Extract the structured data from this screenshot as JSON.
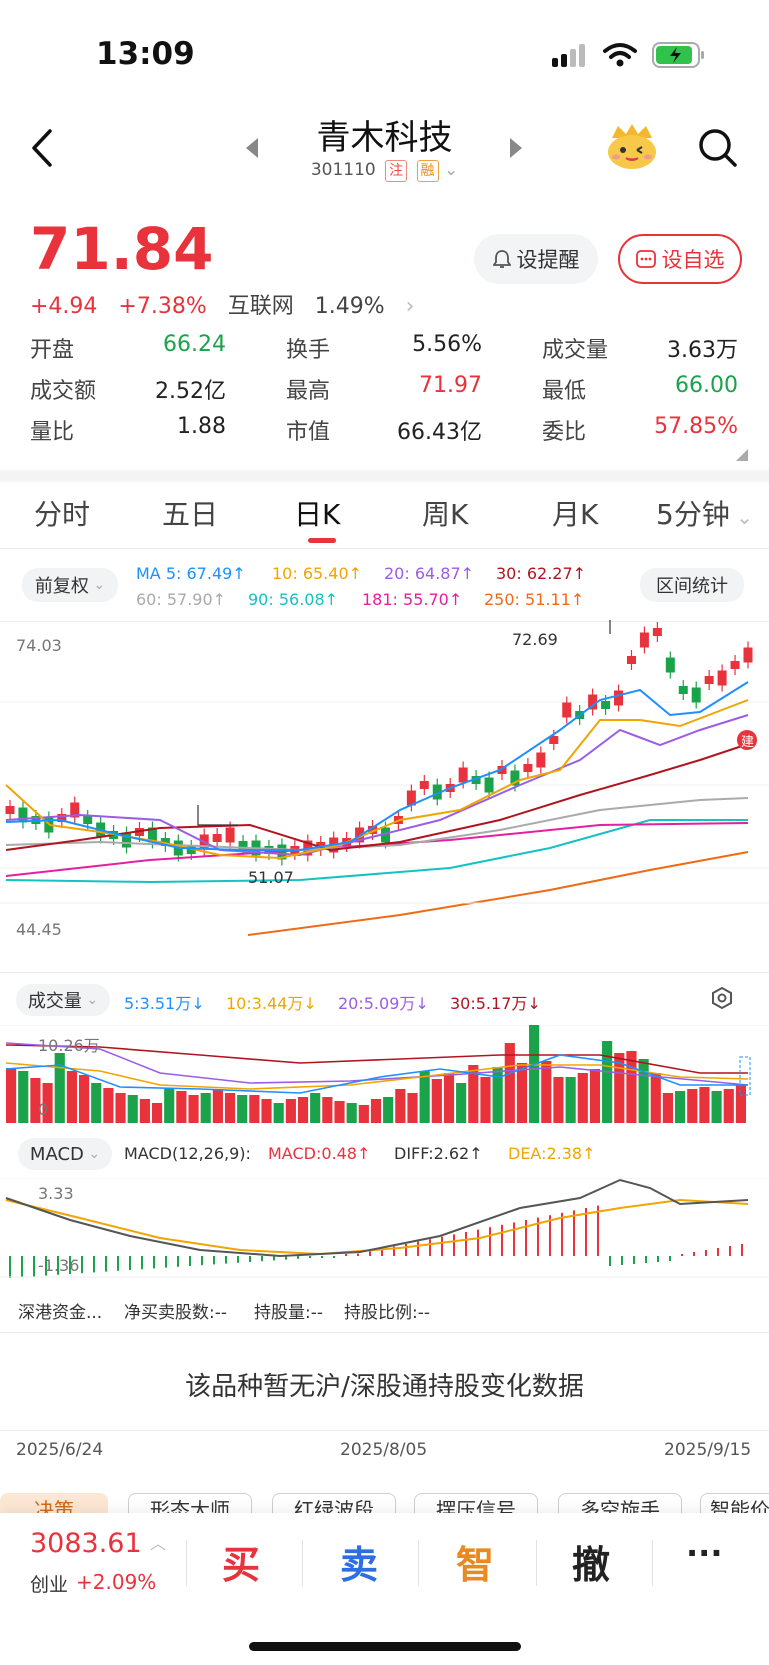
{
  "status": {
    "time": "13:09"
  },
  "header": {
    "title": "青木科技",
    "code": "301110",
    "tag1": "注",
    "tag2": "融"
  },
  "quote": {
    "price": "71.84",
    "change": "+4.94",
    "change_pct": "+7.38%",
    "sector": "互联网",
    "sector_pct": "1.49%",
    "btn_alert": "设提醒",
    "btn_watch": "设自选"
  },
  "stats": [
    {
      "label": "开盘",
      "value": "66.24",
      "color": "green"
    },
    {
      "label": "换手",
      "value": "5.56%",
      "color": "black"
    },
    {
      "label": "成交量",
      "value": "3.63万",
      "color": "black"
    },
    {
      "label": "成交额",
      "value": "2.52亿",
      "color": "black"
    },
    {
      "label": "最高",
      "value": "71.97",
      "color": "red"
    },
    {
      "label": "最低",
      "value": "66.00",
      "color": "green"
    },
    {
      "label": "量比",
      "value": "1.88",
      "color": "black"
    },
    {
      "label": "市值",
      "value": "66.43亿",
      "color": "black"
    },
    {
      "label": "委比",
      "value": "57.85%",
      "color": "red"
    }
  ],
  "tabs": [
    "分时",
    "五日",
    "日K",
    "周K",
    "月K",
    "5分钟"
  ],
  "kline": {
    "adjust": "前复权",
    "range_stats": "区间统计",
    "ma_row1": [
      "MA 5: 67.49↑",
      "10: 65.40↑",
      "20: 64.87↑",
      "30: 62.27↑"
    ],
    "ma_row2": [
      "60: 57.90↑",
      "90: 56.08↑",
      "181: 55.70↑",
      "250: 51.11↑"
    ],
    "ma_colors": [
      "#1e90ff",
      "#f0a500",
      "#9b5de5",
      "#b0141e",
      "#aaaaaa",
      "#13c2c2",
      "#e61ea0",
      "#f06a14"
    ],
    "y_max": "74.03",
    "y_min": "44.45",
    "high_label": "72.69",
    "low_label": "51.07",
    "badge": "建"
  },
  "volume": {
    "title": "成交量",
    "legend": [
      "5:3.51万↓",
      "10:3.44万↓",
      "20:5.09万↓",
      "30:5.17万↓"
    ],
    "max_label": "10.26万",
    "zero_label": "0"
  },
  "macd": {
    "title": "MACD",
    "legend": [
      "MACD(12,26,9):",
      "MACD:0.48↑",
      "DIFF:2.62↑",
      "DEA:2.38↑"
    ],
    "top_label": "3.33",
    "bottom_label": "-1.36"
  },
  "hk_flow": {
    "title": "深港资金...",
    "items": [
      "净买卖股数:--",
      "持股量:--",
      "持股比例:--"
    ],
    "empty_msg": "该品种暂无沪/深股通持股变化数据"
  },
  "dates": [
    "2025/6/24",
    "2025/8/05",
    "2025/9/15"
  ],
  "chips": [
    "决策",
    "形态大师",
    "红绿波段",
    "摆压信号",
    "多空旋手",
    "智能价"
  ],
  "bottom": {
    "index_value": "3083.61",
    "index_name": "创业",
    "index_pct": "+2.09%",
    "buy": "买",
    "sell": "卖",
    "smart": "智",
    "cancel": "撤",
    "more": "···"
  }
}
